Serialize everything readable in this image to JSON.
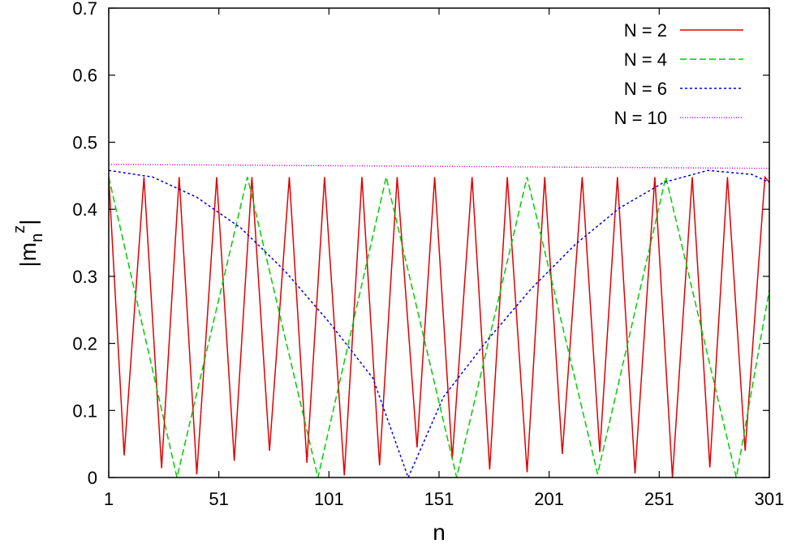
{
  "chart_data": {
    "type": "line",
    "xlabel": "n",
    "ylabel": {
      "prefix": "|m",
      "subscript": "n",
      "superscript": "z",
      "suffix": "|"
    },
    "xlim": [
      1,
      301
    ],
    "ylim": [
      0,
      0.7
    ],
    "x_ticks": [
      1,
      51,
      101,
      151,
      201,
      251,
      301
    ],
    "y_ticks": [
      0,
      0.1,
      0.2,
      0.3,
      0.4,
      0.5,
      0.6,
      0.7
    ],
    "y_tick_labels": [
      "0",
      "0.1",
      "0.2",
      "0.3",
      "0.4",
      "0.5",
      "0.6",
      "0.7"
    ],
    "grid": false,
    "legend_position": "top-right",
    "series": [
      {
        "name": "N = 2",
        "color": "#e00000",
        "dash": "solid",
        "x": [
          1,
          8,
          17,
          25,
          33,
          41,
          50,
          58,
          66,
          74,
          83,
          91,
          99,
          108,
          116,
          124,
          132,
          141,
          149,
          157,
          166,
          174,
          182,
          191,
          199,
          207,
          216,
          224,
          232,
          240,
          249,
          257,
          266,
          274,
          282,
          290,
          299,
          301
        ],
        "y": [
          0.448,
          0.033,
          0.448,
          0.014,
          0.448,
          0.005,
          0.448,
          0.025,
          0.448,
          0.04,
          0.448,
          0.022,
          0.448,
          0.003,
          0.448,
          0.018,
          0.448,
          0.045,
          0.448,
          0.028,
          0.448,
          0.012,
          0.448,
          0.008,
          0.448,
          0.035,
          0.448,
          0.038,
          0.448,
          0.006,
          0.448,
          0.0,
          0.448,
          0.015,
          0.448,
          0.04,
          0.448,
          0.44
        ]
      },
      {
        "name": "N = 4",
        "color": "#00cc00",
        "dash": "8,4",
        "x": [
          1,
          32,
          64,
          96,
          127,
          159,
          191,
          223,
          254,
          286,
          301
        ],
        "y": [
          0.448,
          0.0,
          0.448,
          0.0,
          0.448,
          0.0,
          0.448,
          0.005,
          0.448,
          0.0,
          0.28
        ]
      },
      {
        "name": "N = 6",
        "color": "#0000dd",
        "dash": "3,3",
        "x": [
          1,
          21,
          41,
          61,
          81,
          101,
          121,
          137,
          153,
          173,
          193,
          213,
          233,
          253,
          273,
          293,
          301
        ],
        "y": [
          0.458,
          0.448,
          0.418,
          0.372,
          0.308,
          0.232,
          0.148,
          0.0,
          0.12,
          0.205,
          0.282,
          0.348,
          0.402,
          0.44,
          0.458,
          0.452,
          0.44
        ]
      },
      {
        "name": "N = 10",
        "color": "#dd00dd",
        "dash": "1,2",
        "x": [
          1,
          301
        ],
        "y": [
          0.467,
          0.461
        ]
      }
    ]
  }
}
